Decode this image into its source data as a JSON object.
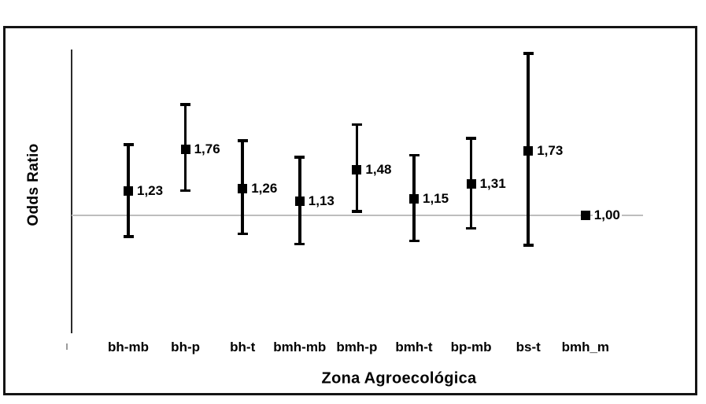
{
  "figure": {
    "background_color": "#ffffff",
    "frame_color": "#141414",
    "axis_color": "#2b2b2b",
    "data_color": "#000000",
    "reference_line_color": "#bdbdbd"
  },
  "chart_data": {
    "type": "scatter",
    "subtype": "odds-ratio-with-error-bars",
    "title": "",
    "xlabel": "Zona Agroecológica",
    "ylabel": "Odds Ratio",
    "y_scale": "log",
    "grid": false,
    "legend": null,
    "reference_value": 1.0,
    "categories": [
      "bh-mb",
      "bh-p",
      "bh-t",
      "bmh-mb",
      "bmh-p",
      "bmh-t",
      "bp-mb",
      "bs-t",
      "bmh_m"
    ],
    "values": [
      1.23,
      1.76,
      1.26,
      1.13,
      1.48,
      1.15,
      1.31,
      1.73,
      1.0
    ],
    "value_labels": [
      "1,23",
      "1,76",
      "1,26",
      "1,13",
      "1,48",
      "1,15",
      "1,31",
      "1,73",
      "1,00"
    ],
    "ci_low": [
      0.83,
      1.23,
      0.85,
      0.78,
      1.03,
      0.8,
      0.89,
      0.77,
      null
    ],
    "ci_high": [
      1.84,
      2.59,
      1.9,
      1.65,
      2.18,
      1.68,
      1.94,
      4.01,
      null
    ]
  }
}
